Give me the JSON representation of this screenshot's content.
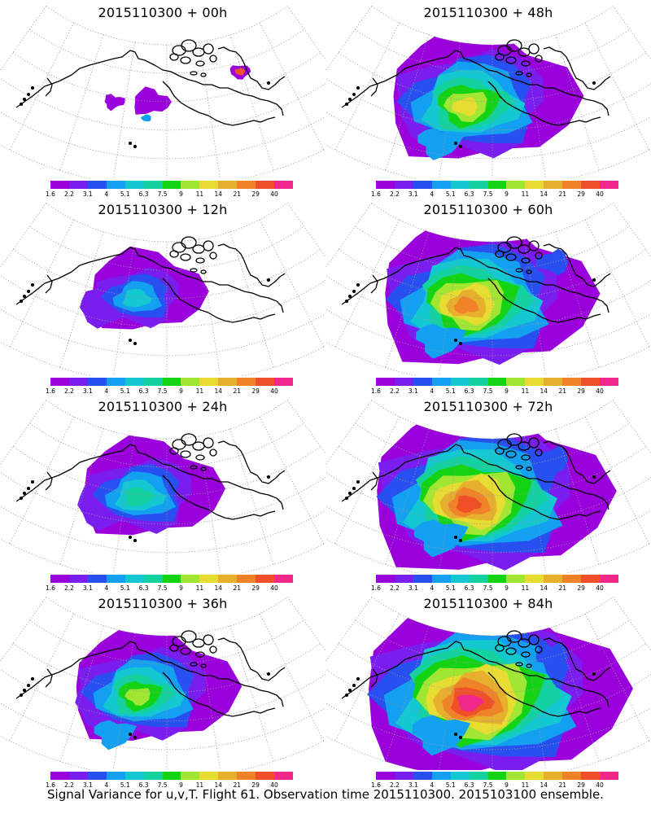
{
  "panels": [
    {
      "title": "2015110300 + 00h",
      "level": 0
    },
    {
      "title": "2015110300 + 48h",
      "level": 4
    },
    {
      "title": "2015110300 + 12h",
      "level": 1
    },
    {
      "title": "2015110300 + 60h",
      "level": 5
    },
    {
      "title": "2015110300 + 24h",
      "level": 2
    },
    {
      "title": "2015110300 + 72h",
      "level": 6
    },
    {
      "title": "2015110300 + 36h",
      "level": 3
    },
    {
      "title": "2015110300 + 84h",
      "level": 7
    }
  ],
  "colorbar": {
    "colors": [
      "#9a00dc",
      "#7a1ef0",
      "#2850f0",
      "#14a0f0",
      "#14c8d2",
      "#14d2a0",
      "#14d214",
      "#a0e632",
      "#e6dc32",
      "#e6af2d",
      "#f08228",
      "#f05028",
      "#f0288c"
    ],
    "labels": [
      "1.6",
      "2.2",
      "3.1",
      "4",
      "5.1",
      "6.3",
      "7.5",
      "9",
      "11",
      "14",
      "21",
      "29",
      "40"
    ]
  },
  "footer": "Signal Variance for u,v,T. Flight 61. Observation time 2015110300. 2015103100 ensemble."
}
